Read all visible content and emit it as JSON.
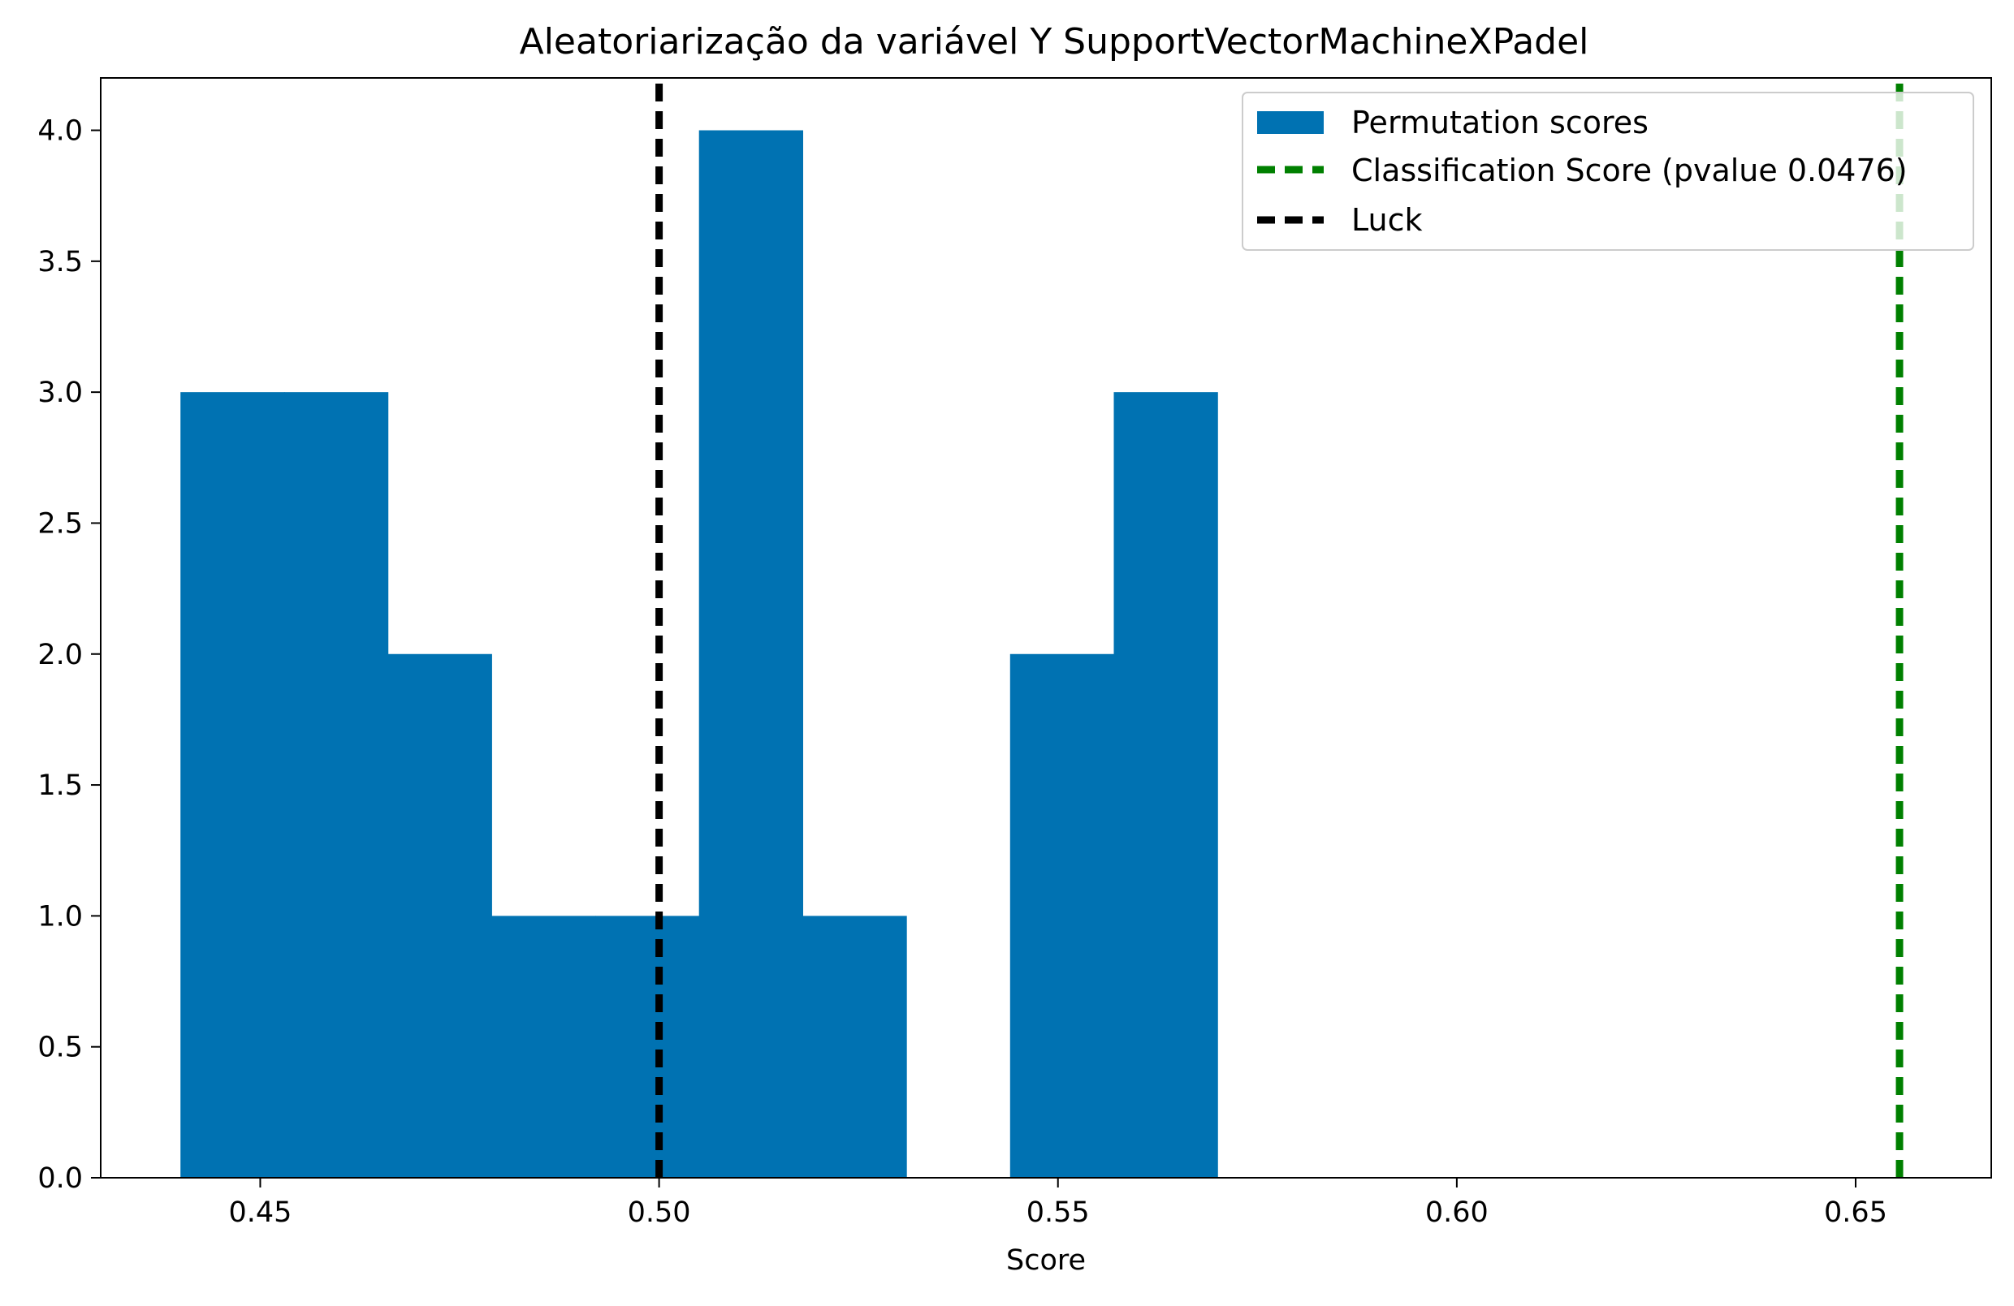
{
  "chart_data": {
    "type": "bar",
    "title": "Aleatoriarização da variável Y SupportVectorMachineXPadel",
    "xlabel": "Score",
    "ylabel": "",
    "xlim": [
      0.43,
      0.667
    ],
    "ylim": [
      0,
      4.2
    ],
    "xticks": [
      0.45,
      0.5,
      0.55,
      0.6,
      0.65
    ],
    "xtick_labels": [
      "0.45",
      "0.50",
      "0.55",
      "0.60",
      "0.65"
    ],
    "yticks": [
      0.0,
      0.5,
      1.0,
      1.5,
      2.0,
      2.5,
      3.0,
      3.5,
      4.0
    ],
    "ytick_labels": [
      "0.0",
      "0.5",
      "1.0",
      "1.5",
      "2.0",
      "2.5",
      "3.0",
      "3.5",
      "4.0"
    ],
    "grid": false,
    "legend_position": "top-right",
    "histogram": {
      "name": "Permutation scores",
      "color": "#0072b2",
      "bin_edges": [
        0.44,
        0.453,
        0.466,
        0.479,
        0.492,
        0.505,
        0.518,
        0.531,
        0.544,
        0.557,
        0.57
      ],
      "counts": [
        3,
        3,
        2,
        1,
        1,
        4,
        1,
        0,
        2,
        3
      ]
    },
    "lines": [
      {
        "name": "Classification Score (pvalue 0.0476)",
        "x": 0.6555,
        "color": "#008000",
        "style": "dashed"
      },
      {
        "name": "Luck",
        "x": 0.5,
        "color": "#000000",
        "style": "dashed"
      }
    ],
    "legend": [
      "Permutation scores",
      "Classification Score (pvalue 0.0476)",
      "Luck"
    ]
  }
}
